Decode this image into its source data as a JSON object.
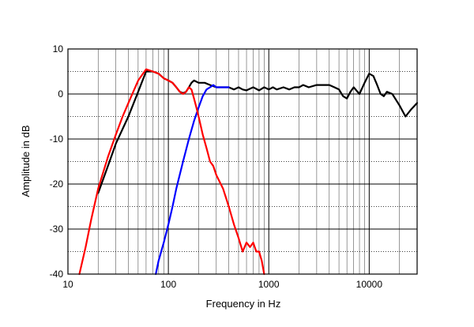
{
  "chart_data": {
    "type": "line",
    "xlabel": "Frequency in Hz",
    "ylabel": "Amplitude in dB",
    "xscale": "log",
    "xlim": [
      10,
      30000
    ],
    "ylim": [
      -40,
      10
    ],
    "x_ticks": [
      10,
      100,
      1000,
      10000
    ],
    "x_tick_labels": [
      "10",
      "100",
      "1000",
      "10000"
    ],
    "y_ticks": [
      10,
      0,
      -10,
      -20,
      -30,
      -40
    ],
    "y_tick_labels": [
      "10",
      "0",
      "-10",
      "-20",
      "-30",
      "-40"
    ],
    "grid": true,
    "legend": "none",
    "series": [
      {
        "color": "#000000",
        "x": [
          20,
          25,
          30,
          40,
          50,
          60,
          70,
          80,
          90,
          100,
          110,
          120,
          130,
          140,
          150,
          160,
          170,
          180,
          200,
          230,
          260,
          300,
          350,
          400,
          450,
          500,
          550,
          600,
          700,
          800,
          900,
          1000,
          1100,
          1200,
          1400,
          1600,
          1800,
          2000,
          2200,
          2500,
          3000,
          3500,
          4000,
          4500,
          5000,
          5500,
          6000,
          6500,
          7000,
          8000,
          9000,
          10000,
          11000,
          12000,
          13000,
          14000,
          15000,
          17000,
          20000,
          23000,
          26000,
          30000
        ],
        "y": [
          -22,
          -16,
          -11,
          -5,
          0.5,
          5,
          5,
          4.5,
          3.5,
          3,
          2.5,
          1.5,
          0.5,
          0.2,
          0.5,
          1.5,
          2.5,
          3,
          2.5,
          2.5,
          2,
          1.5,
          1.5,
          1.5,
          1,
          1.5,
          1,
          0.8,
          1.5,
          0.8,
          1.5,
          1,
          1.5,
          1,
          1.5,
          1,
          1.5,
          1.5,
          2,
          1.5,
          2,
          2,
          2,
          1.5,
          1,
          -0.5,
          -1,
          0.5,
          1.5,
          0,
          2.5,
          4.5,
          4,
          2,
          0,
          -0.5,
          0.5,
          0,
          -2.5,
          -5,
          -3.5,
          -2
        ]
      },
      {
        "color": "#0000ff",
        "x": [
          75,
          80,
          90,
          100,
          110,
          120,
          140,
          160,
          180,
          200,
          220,
          240,
          260,
          280,
          300,
          350,
          400
        ],
        "y": [
          -40,
          -37,
          -33,
          -29,
          -25,
          -21,
          -15,
          -10,
          -6,
          -3,
          -0.5,
          1,
          1.5,
          2,
          1.5,
          1.5,
          1.5
        ]
      },
      {
        "color": "#ff0000",
        "x": [
          13,
          15,
          17,
          20,
          25,
          30,
          35,
          40,
          50,
          60,
          70,
          80,
          90,
          100,
          110,
          120,
          130,
          140,
          150,
          160,
          170,
          180,
          190,
          200,
          220,
          240,
          260,
          280,
          300,
          350,
          400,
          450,
          500,
          550,
          600,
          650,
          700,
          750,
          800,
          850,
          900
        ],
        "y": [
          -40,
          -34,
          -28,
          -21,
          -14,
          -9,
          -5,
          -2,
          3,
          5.5,
          5,
          4.5,
          3.5,
          3,
          2.5,
          1.5,
          0.5,
          0,
          0.5,
          1.5,
          1,
          -1,
          -3,
          -5,
          -9,
          -12,
          -15,
          -16,
          -18,
          -21,
          -25,
          -29,
          -32,
          -35,
          -33,
          -34,
          -33,
          -35,
          -35,
          -37,
          -40
        ]
      }
    ]
  }
}
